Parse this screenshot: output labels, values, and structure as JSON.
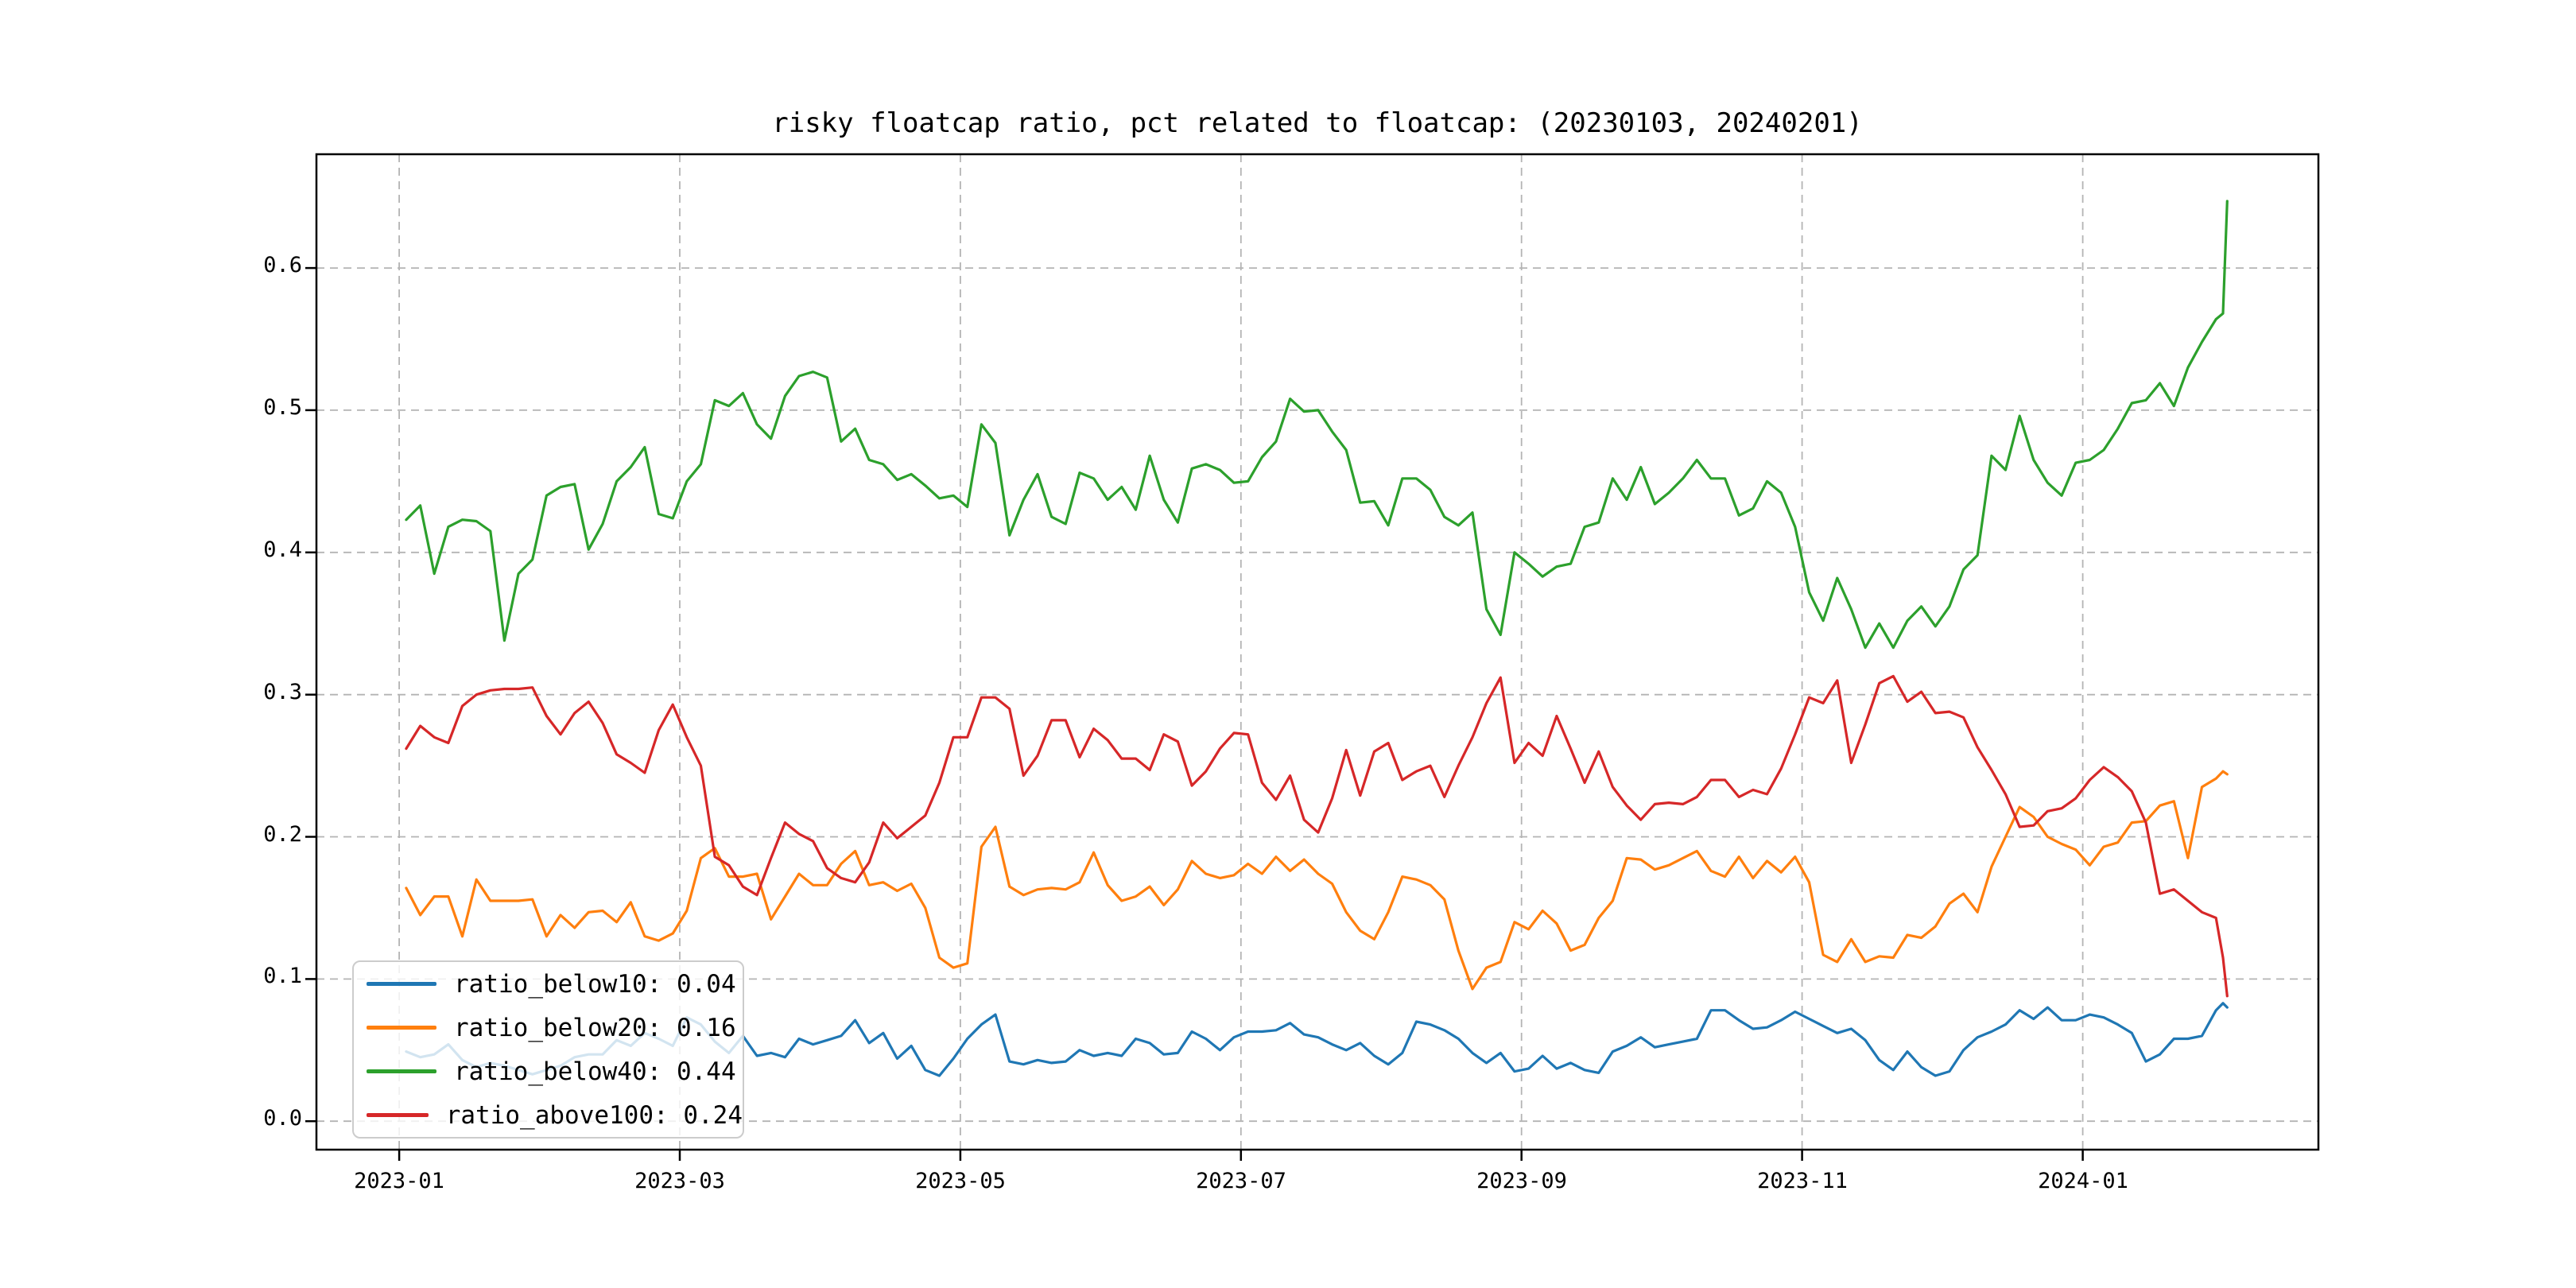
{
  "figure": {
    "background": "#ffffff"
  },
  "chart_data": {
    "type": "line",
    "title": "risky floatcap ratio, pct related to floatcap: (20230103, 20240201)",
    "xlabel": "",
    "ylabel": "",
    "grid": "dashed",
    "legend_position": "lower left",
    "x_unit": "months since 2023-01-01 (0 = 2023-01, 13.03 = 2024-02-01)",
    "xlim": [
      -0.59,
      13.68
    ],
    "ylim": [
      -0.02,
      0.68
    ],
    "x_ticks": [
      0,
      2,
      4,
      6,
      8,
      10,
      12
    ],
    "x_tick_labels": [
      "2023-01",
      "2023-03",
      "2023-05",
      "2023-07",
      "2023-09",
      "2023-11",
      "2024-01"
    ],
    "y_ticks": [
      0.0,
      0.1,
      0.2,
      0.3,
      0.4,
      0.5,
      0.6
    ],
    "y_tick_labels": [
      "0.0",
      "0.1",
      "0.2",
      "0.3",
      "0.4",
      "0.5",
      "0.6"
    ],
    "x": [
      0.05,
      0.15,
      0.25,
      0.35,
      0.45,
      0.55,
      0.65,
      0.75,
      0.85,
      0.95,
      1.05,
      1.15,
      1.25,
      1.35,
      1.45,
      1.55,
      1.65,
      1.75,
      1.85,
      1.95,
      2.05,
      2.15,
      2.25,
      2.35,
      2.45,
      2.55,
      2.65,
      2.75,
      2.85,
      2.95,
      3.05,
      3.15,
      3.25,
      3.35,
      3.45,
      3.55,
      3.65,
      3.75,
      3.85,
      3.95,
      4.05,
      4.15,
      4.25,
      4.35,
      4.45,
      4.55,
      4.65,
      4.75,
      4.85,
      4.95,
      5.05,
      5.15,
      5.25,
      5.35,
      5.45,
      5.55,
      5.65,
      5.75,
      5.85,
      5.95,
      6.05,
      6.15,
      6.25,
      6.35,
      6.45,
      6.55,
      6.65,
      6.75,
      6.85,
      6.95,
      7.05,
      7.15,
      7.25,
      7.35,
      7.45,
      7.55,
      7.65,
      7.75,
      7.85,
      7.95,
      8.05,
      8.15,
      8.25,
      8.35,
      8.45,
      8.55,
      8.65,
      8.75,
      8.85,
      8.95,
      9.05,
      9.15,
      9.25,
      9.35,
      9.45,
      9.55,
      9.65,
      9.75,
      9.85,
      9.95,
      10.05,
      10.15,
      10.25,
      10.35,
      10.45,
      10.55,
      10.65,
      10.75,
      10.85,
      10.95,
      11.05,
      11.15,
      11.25,
      11.35,
      11.45,
      11.55,
      11.65,
      11.75,
      11.85,
      11.95,
      12.05,
      12.15,
      12.25,
      12.35,
      12.45,
      12.55,
      12.65,
      12.75,
      12.85,
      12.95,
      13.0,
      13.03
    ],
    "series": [
      {
        "name": "ratio_below10",
        "legend_label": "ratio_below10: 0.04",
        "color": "#1f77b4",
        "values": [
          0.049,
          0.045,
          0.047,
          0.054,
          0.043,
          0.038,
          0.041,
          0.039,
          0.036,
          0.033,
          0.036,
          0.039,
          0.045,
          0.047,
          0.047,
          0.057,
          0.053,
          0.062,
          0.058,
          0.053,
          0.073,
          0.068,
          0.056,
          0.048,
          0.06,
          0.046,
          0.048,
          0.045,
          0.058,
          0.054,
          0.057,
          0.06,
          0.071,
          0.055,
          0.062,
          0.044,
          0.053,
          0.036,
          0.032,
          0.044,
          0.058,
          0.068,
          0.075,
          0.042,
          0.04,
          0.043,
          0.041,
          0.042,
          0.05,
          0.046,
          0.048,
          0.046,
          0.058,
          0.055,
          0.047,
          0.048,
          0.063,
          0.058,
          0.05,
          0.059,
          0.063,
          0.063,
          0.064,
          0.069,
          0.061,
          0.059,
          0.054,
          0.05,
          0.055,
          0.046,
          0.04,
          0.048,
          0.07,
          0.068,
          0.064,
          0.058,
          0.048,
          0.041,
          0.048,
          0.035,
          0.037,
          0.046,
          0.037,
          0.041,
          0.036,
          0.034,
          0.049,
          0.053,
          0.059,
          0.052,
          0.054,
          0.056,
          0.058,
          0.078,
          0.078,
          0.071,
          0.065,
          0.066,
          0.071,
          0.077,
          0.072,
          0.067,
          0.062,
          0.065,
          0.057,
          0.043,
          0.036,
          0.049,
          0.038,
          0.032,
          0.035,
          0.05,
          0.059,
          0.063,
          0.068,
          0.078,
          0.072,
          0.08,
          0.071,
          0.071,
          0.075,
          0.073,
          0.068,
          0.062,
          0.042,
          0.047,
          0.058,
          0.058,
          0.06,
          0.078,
          0.083,
          0.08
        ]
      },
      {
        "name": "ratio_below20",
        "legend_label": "ratio_below20: 0.16",
        "color": "#ff7f0e",
        "values": [
          0.164,
          0.145,
          0.158,
          0.158,
          0.13,
          0.17,
          0.155,
          0.155,
          0.155,
          0.156,
          0.13,
          0.145,
          0.136,
          0.147,
          0.148,
          0.14,
          0.154,
          0.13,
          0.127,
          0.132,
          0.148,
          0.185,
          0.192,
          0.172,
          0.172,
          0.174,
          0.142,
          0.158,
          0.174,
          0.166,
          0.166,
          0.181,
          0.19,
          0.166,
          0.168,
          0.162,
          0.167,
          0.15,
          0.115,
          0.108,
          0.111,
          0.193,
          0.207,
          0.165,
          0.159,
          0.163,
          0.164,
          0.163,
          0.168,
          0.189,
          0.166,
          0.155,
          0.158,
          0.165,
          0.152,
          0.163,
          0.183,
          0.174,
          0.171,
          0.173,
          0.181,
          0.174,
          0.186,
          0.176,
          0.184,
          0.174,
          0.167,
          0.147,
          0.134,
          0.128,
          0.147,
          0.172,
          0.17,
          0.166,
          0.156,
          0.12,
          0.093,
          0.108,
          0.112,
          0.14,
          0.135,
          0.148,
          0.139,
          0.12,
          0.124,
          0.143,
          0.155,
          0.185,
          0.184,
          0.177,
          0.18,
          0.185,
          0.19,
          0.176,
          0.172,
          0.186,
          0.171,
          0.183,
          0.175,
          0.186,
          0.168,
          0.117,
          0.112,
          0.128,
          0.112,
          0.116,
          0.115,
          0.131,
          0.129,
          0.137,
          0.153,
          0.16,
          0.147,
          0.179,
          0.2,
          0.221,
          0.214,
          0.2,
          0.195,
          0.191,
          0.18,
          0.193,
          0.196,
          0.21,
          0.211,
          0.222,
          0.225,
          0.185,
          0.235,
          0.241,
          0.246,
          0.244
        ]
      },
      {
        "name": "ratio_below40",
        "legend_label": "ratio_below40: 0.44",
        "color": "#2ca02c",
        "values": [
          0.423,
          0.433,
          0.385,
          0.418,
          0.423,
          0.422,
          0.415,
          0.338,
          0.385,
          0.395,
          0.44,
          0.446,
          0.448,
          0.402,
          0.42,
          0.45,
          0.46,
          0.474,
          0.427,
          0.424,
          0.45,
          0.462,
          0.507,
          0.503,
          0.512,
          0.49,
          0.48,
          0.51,
          0.524,
          0.527,
          0.523,
          0.478,
          0.487,
          0.465,
          0.462,
          0.451,
          0.455,
          0.447,
          0.438,
          0.44,
          0.432,
          0.49,
          0.477,
          0.412,
          0.437,
          0.455,
          0.425,
          0.42,
          0.456,
          0.452,
          0.437,
          0.446,
          0.43,
          0.468,
          0.437,
          0.421,
          0.459,
          0.462,
          0.458,
          0.449,
          0.45,
          0.467,
          0.478,
          0.508,
          0.499,
          0.5,
          0.485,
          0.472,
          0.435,
          0.436,
          0.419,
          0.452,
          0.452,
          0.444,
          0.425,
          0.419,
          0.428,
          0.36,
          0.342,
          0.4,
          0.392,
          0.383,
          0.39,
          0.392,
          0.418,
          0.421,
          0.452,
          0.437,
          0.46,
          0.434,
          0.442,
          0.452,
          0.465,
          0.452,
          0.452,
          0.426,
          0.431,
          0.45,
          0.442,
          0.418,
          0.372,
          0.352,
          0.382,
          0.36,
          0.333,
          0.35,
          0.333,
          0.352,
          0.362,
          0.348,
          0.362,
          0.388,
          0.398,
          0.468,
          0.458,
          0.496,
          0.465,
          0.449,
          0.44,
          0.463,
          0.465,
          0.472,
          0.487,
          0.505,
          0.507,
          0.519,
          0.503,
          0.53,
          0.548,
          0.564,
          0.568,
          0.647
        ]
      },
      {
        "name": "ratio_above100",
        "legend_label": "ratio_above100: 0.24",
        "color": "#d62728",
        "values": [
          0.262,
          0.278,
          0.27,
          0.266,
          0.292,
          0.3,
          0.303,
          0.304,
          0.304,
          0.305,
          0.285,
          0.272,
          0.287,
          0.295,
          0.28,
          0.258,
          0.252,
          0.245,
          0.275,
          0.293,
          0.27,
          0.25,
          0.186,
          0.18,
          0.165,
          0.159,
          0.185,
          0.21,
          0.202,
          0.197,
          0.178,
          0.171,
          0.168,
          0.182,
          0.21,
          0.199,
          0.207,
          0.215,
          0.238,
          0.27,
          0.27,
          0.298,
          0.298,
          0.29,
          0.243,
          0.257,
          0.282,
          0.282,
          0.256,
          0.276,
          0.268,
          0.255,
          0.255,
          0.247,
          0.272,
          0.267,
          0.236,
          0.246,
          0.262,
          0.273,
          0.272,
          0.238,
          0.226,
          0.243,
          0.212,
          0.203,
          0.227,
          0.261,
          0.229,
          0.26,
          0.266,
          0.24,
          0.246,
          0.25,
          0.228,
          0.25,
          0.27,
          0.294,
          0.312,
          0.252,
          0.266,
          0.257,
          0.285,
          0.262,
          0.238,
          0.26,
          0.235,
          0.222,
          0.212,
          0.223,
          0.224,
          0.223,
          0.228,
          0.24,
          0.24,
          0.228,
          0.233,
          0.23,
          0.248,
          0.272,
          0.298,
          0.294,
          0.31,
          0.252,
          0.279,
          0.308,
          0.313,
          0.295,
          0.302,
          0.287,
          0.288,
          0.284,
          0.263,
          0.247,
          0.23,
          0.207,
          0.208,
          0.218,
          0.22,
          0.227,
          0.24,
          0.249,
          0.242,
          0.232,
          0.21,
          0.16,
          0.163,
          0.155,
          0.147,
          0.143,
          0.115,
          0.088
        ]
      }
    ]
  }
}
